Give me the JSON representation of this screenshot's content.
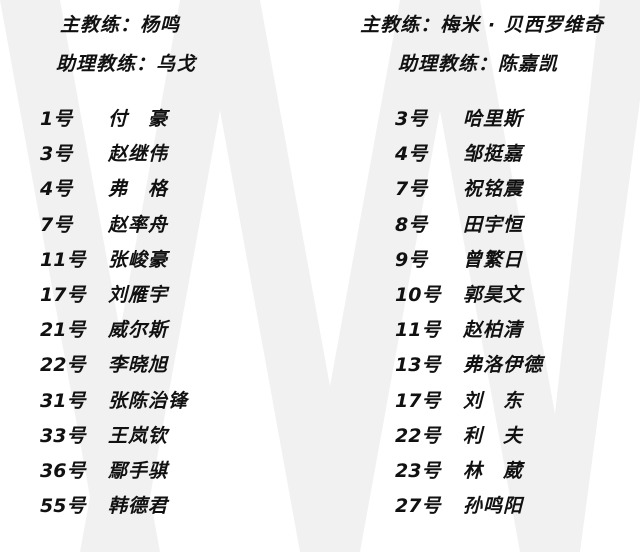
{
  "left": {
    "head_coach": "主教练：杨鸣",
    "assistant_coach": "助理教练：乌戈",
    "players": [
      {
        "number": "1号",
        "name": "付　豪"
      },
      {
        "number": "3号",
        "name": "赵继伟"
      },
      {
        "number": "4号",
        "name": "弗　格"
      },
      {
        "number": "7号",
        "name": "赵率舟"
      },
      {
        "number": "11号",
        "name": "张峻豪"
      },
      {
        "number": "17号",
        "name": "刘雁宇"
      },
      {
        "number": "21号",
        "name": "威尔斯"
      },
      {
        "number": "22号",
        "name": "李晓旭"
      },
      {
        "number": "31号",
        "name": "张陈治锋"
      },
      {
        "number": "33号",
        "name": "王岚钦"
      },
      {
        "number": "36号",
        "name": "鄢手骐"
      },
      {
        "number": "55号",
        "name": "韩德君"
      }
    ]
  },
  "right": {
    "head_coach": "主教练：梅米 · 贝西罗维奇",
    "assistant_coach": "助理教练：陈嘉凯",
    "players": [
      {
        "number": "3号",
        "name": "哈里斯"
      },
      {
        "number": "4号",
        "name": "邹挺嘉"
      },
      {
        "number": "7号",
        "name": "祝铭震"
      },
      {
        "number": "8号",
        "name": "田宇恒"
      },
      {
        "number": "9号",
        "name": "曾繁日"
      },
      {
        "number": "10号",
        "name": "郭昊文"
      },
      {
        "number": "11号",
        "name": "赵柏清"
      },
      {
        "number": "13号",
        "name": "弗洛伊德"
      },
      {
        "number": "17号",
        "name": "刘　东"
      },
      {
        "number": "22号",
        "name": "利　夫"
      },
      {
        "number": "23号",
        "name": "林　葳"
      },
      {
        "number": "27号",
        "name": "孙鸣阳"
      }
    ]
  }
}
